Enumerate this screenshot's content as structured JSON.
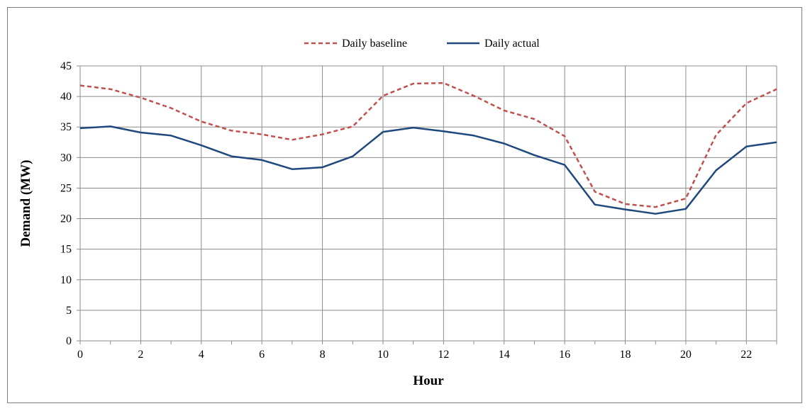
{
  "chart_data": {
    "type": "line",
    "title": "",
    "xlabel": "Hour",
    "ylabel": "Demand (MW)",
    "x": [
      0,
      1,
      2,
      3,
      4,
      5,
      6,
      7,
      8,
      9,
      10,
      11,
      12,
      13,
      14,
      15,
      16,
      17,
      18,
      19,
      20,
      21,
      22,
      23
    ],
    "xticks": [
      0,
      2,
      4,
      6,
      8,
      10,
      12,
      14,
      16,
      18,
      20,
      22
    ],
    "xlim": [
      0,
      23
    ],
    "yticks": [
      0,
      5,
      10,
      15,
      20,
      25,
      30,
      35,
      40,
      45
    ],
    "ylim": [
      0,
      45
    ],
    "grid": true,
    "legend_position": "top",
    "series": [
      {
        "name": "Daily baseline",
        "color": "#c0504d",
        "dashed": true,
        "values": [
          41.8,
          41.2,
          39.8,
          38.1,
          35.9,
          34.4,
          33.8,
          32.9,
          33.8,
          35.1,
          40.1,
          42.1,
          42.2,
          40.1,
          37.7,
          36.3,
          33.5,
          24.4,
          22.4,
          21.9,
          23.3,
          33.7,
          38.9,
          41.2
        ]
      },
      {
        "name": "Daily actual",
        "color": "#1f497d",
        "dashed": false,
        "values": [
          34.8,
          35.1,
          34.1,
          33.6,
          32.0,
          30.2,
          29.6,
          28.1,
          28.4,
          30.2,
          34.2,
          34.9,
          34.3,
          33.6,
          32.3,
          30.4,
          28.8,
          22.3,
          21.5,
          20.8,
          21.6,
          27.9,
          31.8,
          32.5
        ]
      }
    ]
  }
}
